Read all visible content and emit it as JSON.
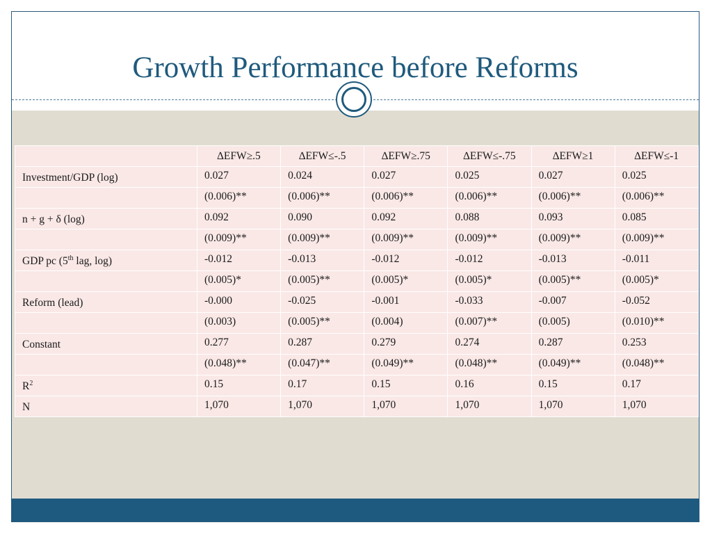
{
  "title": "Growth Performance before Reforms",
  "colors": {
    "accent": "#1f5a7d",
    "band": "#e0dcd0",
    "table_bg": "#f9e8e6",
    "footer": "#1e5a7f"
  },
  "table": {
    "columns": [
      "∆EFW≥.5",
      "∆EFW≤-.5",
      "∆EFW≥.75",
      "∆EFW≤-.75",
      "∆EFW≥1",
      "∆EFW≤-1"
    ],
    "rows": {
      "investment": {
        "label": "Investment/GDP (log)",
        "coef": [
          "0.027",
          "0.024",
          "0.027",
          "0.025",
          "0.027",
          "0.025"
        ],
        "se": [
          "(0.006)**",
          "(0.006)**",
          "(0.006)**",
          "(0.006)**",
          "(0.006)**",
          "(0.006)**"
        ]
      },
      "ngd": {
        "label": "n + g + δ (log)",
        "coef": [
          "0.092",
          "0.090",
          "0.092",
          "0.088",
          "0.093",
          "0.085"
        ],
        "se": [
          "(0.009)**",
          "(0.009)**",
          "(0.009)**",
          "(0.009)**",
          "(0.009)**",
          "(0.009)**"
        ]
      },
      "gdppc": {
        "label_pre": "GDP pc (5",
        "label_sup": "th",
        "label_post": " lag, log)",
        "coef": [
          "-0.012",
          "-0.013",
          "-0.012",
          "-0.012",
          "-0.013",
          "-0.011"
        ],
        "se": [
          "(0.005)*",
          "(0.005)**",
          "(0.005)*",
          "(0.005)*",
          "(0.005)**",
          "(0.005)*"
        ]
      },
      "reform": {
        "label": "Reform (lead)",
        "coef": [
          "-0.000",
          "-0.025",
          "-0.001",
          "-0.033",
          "-0.007",
          "-0.052"
        ],
        "se": [
          "(0.003)",
          "(0.005)**",
          "(0.004)",
          "(0.007)**",
          "(0.005)",
          "(0.010)**"
        ]
      },
      "constant": {
        "label": "Constant",
        "coef": [
          "0.277",
          "0.287",
          "0.279",
          "0.274",
          "0.287",
          "0.253"
        ],
        "se": [
          "(0.048)**",
          "(0.047)**",
          "(0.049)**",
          "(0.048)**",
          "(0.049)**",
          "(0.048)**"
        ]
      },
      "r2": {
        "label_pre": "R",
        "label_sup": "2",
        "values": [
          "0.15",
          "0.17",
          "0.15",
          "0.16",
          "0.15",
          "0.17"
        ]
      },
      "n": {
        "label": "N",
        "values": [
          "1,070",
          "1,070",
          "1,070",
          "1,070",
          "1,070",
          "1,070"
        ]
      }
    }
  }
}
